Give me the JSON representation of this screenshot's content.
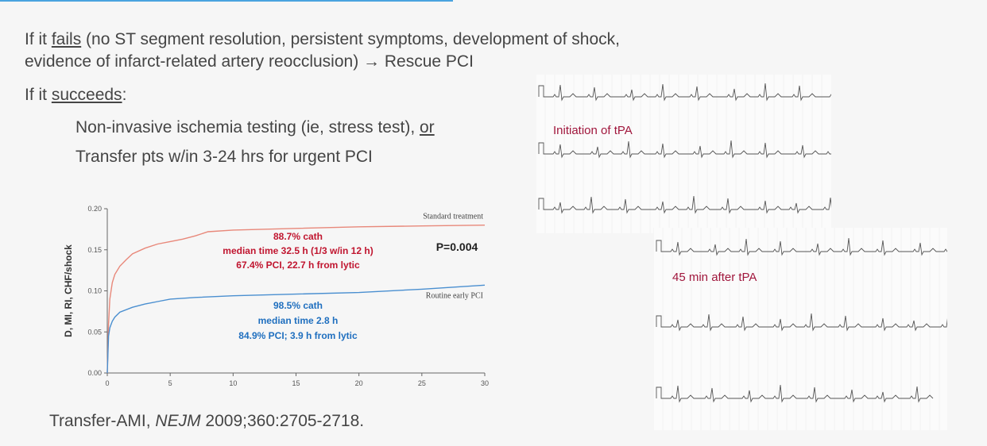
{
  "slide": {
    "fail_line1_prefix": "If it ",
    "fail_word": "fails",
    "fail_line1_rest": " (no ST segment resolution, persistent symptoms, development of shock,",
    "fail_line2": "evidence of infarct-related artery reocclusion) → Rescue PCI",
    "succeed_prefix": "If it ",
    "succeed_word": "succeeds",
    "succeed_suffix": ":",
    "bullet1_text": "Non-invasive ischemia testing (ie, stress test), ",
    "bullet1_or": "or",
    "bullet2_text": "Transfer pts w/in 3-24 hrs for urgent PCI",
    "citation_prefix": "Transfer-AMI, ",
    "citation_journal": "NEJM",
    "citation_rest": " 2009;360:2705-2718."
  },
  "chart_data": {
    "type": "line",
    "ylabel": "D, MI, RI, CHF/shock",
    "xlabel": "",
    "xlim": [
      0,
      30
    ],
    "ylim": [
      0,
      0.2
    ],
    "x_ticks": [
      "0",
      "5",
      "10",
      "15",
      "20",
      "25",
      "30"
    ],
    "y_ticks": [
      "0.00",
      "0.05",
      "0.10",
      "0.15",
      "0.20"
    ],
    "series": [
      {
        "name": "Standard treatment",
        "color": "#e8887a",
        "x": [
          0,
          0.1,
          0.2,
          0.4,
          0.6,
          1,
          1.5,
          2,
          3,
          4,
          5,
          6,
          7,
          8,
          10,
          15,
          20,
          25,
          30
        ],
        "y": [
          0,
          0.06,
          0.09,
          0.11,
          0.12,
          0.13,
          0.138,
          0.145,
          0.152,
          0.157,
          0.16,
          0.163,
          0.167,
          0.172,
          0.174,
          0.176,
          0.178,
          0.179,
          0.18
        ]
      },
      {
        "name": "Routine early PCI",
        "color": "#4a8fd0",
        "x": [
          0,
          0.1,
          0.2,
          0.4,
          0.6,
          1,
          2,
          3,
          4,
          5,
          7,
          10,
          15,
          20,
          25,
          30
        ],
        "y": [
          0,
          0.045,
          0.055,
          0.063,
          0.068,
          0.074,
          0.08,
          0.084,
          0.087,
          0.09,
          0.092,
          0.094,
          0.096,
          0.098,
          0.102,
          0.107
        ]
      }
    ],
    "annotations": {
      "standard": [
        "88.7% cath",
        "median time 32.5 h (1/3 w/in 12 h)",
        "67.4% PCI, 22.7 h from lytic"
      ],
      "early": [
        "98.5% cath",
        "median time 2.8 h",
        "84.9% PCI; 3.9 h from lytic"
      ],
      "pvalue": "P=0.004",
      "standard_color": "#c0152f",
      "early_color": "#1f6fbf"
    }
  },
  "ecg": {
    "before_label": "Initiation of tPA",
    "after_label": "45 min after tPA"
  }
}
